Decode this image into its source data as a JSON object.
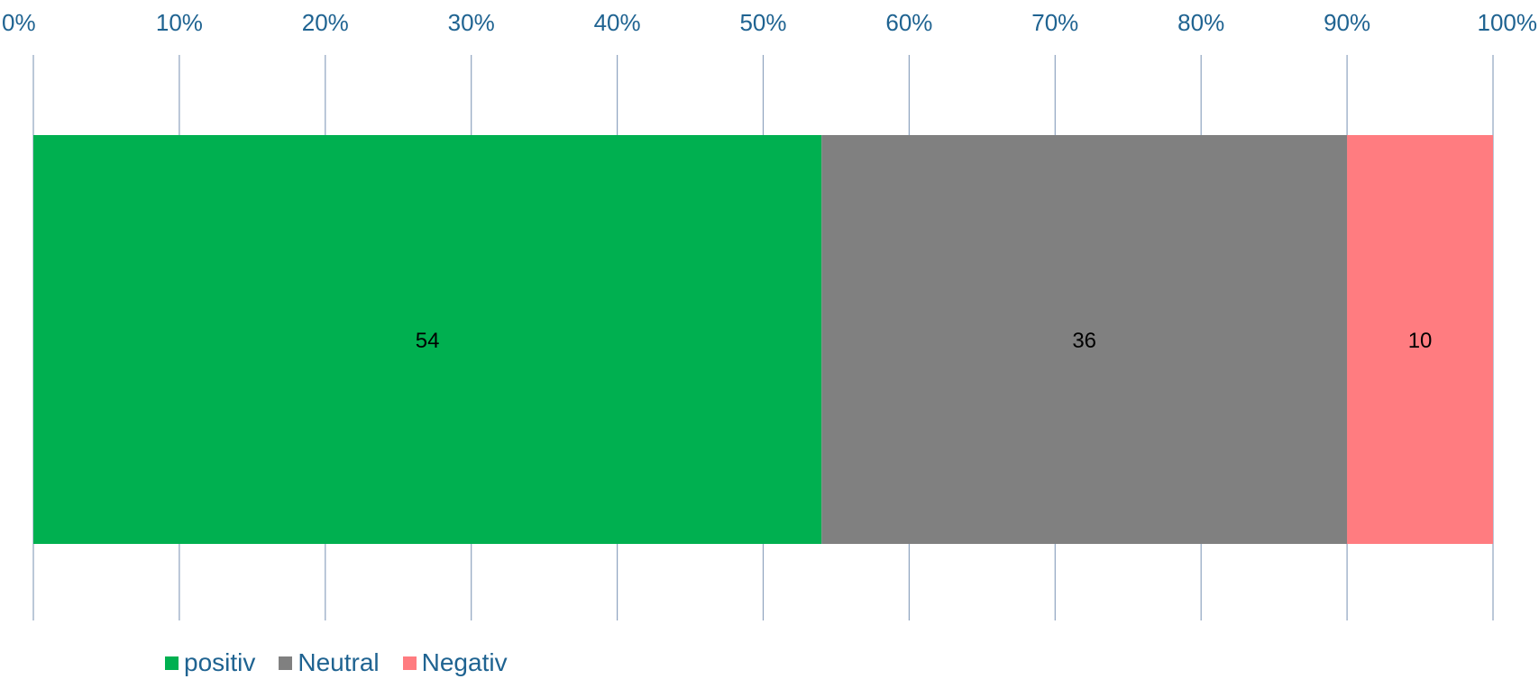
{
  "chart_data": {
    "type": "bar",
    "orientation": "horizontal",
    "stacked": "percent",
    "categories": [
      ""
    ],
    "series": [
      {
        "name": "positiv",
        "values": [
          54
        ],
        "color": "#00b050"
      },
      {
        "name": "Neutral",
        "values": [
          36
        ],
        "color": "#808080"
      },
      {
        "name": "Negativ",
        "values": [
          10
        ],
        "color": "#ff7c80"
      }
    ],
    "data_labels": [
      "54",
      "36",
      "10"
    ],
    "x_ticks": [
      "0%",
      "10%",
      "20%",
      "30%",
      "40%",
      "50%",
      "60%",
      "70%",
      "80%",
      "90%",
      "100%"
    ],
    "xlim": [
      0,
      100
    ],
    "x_axis_position": "top",
    "grid": true,
    "grid_color": "#8ea3bf",
    "tick_label_color": "#1f6391",
    "legend_position": "bottom",
    "title": "",
    "xlabel": "",
    "ylabel": ""
  }
}
